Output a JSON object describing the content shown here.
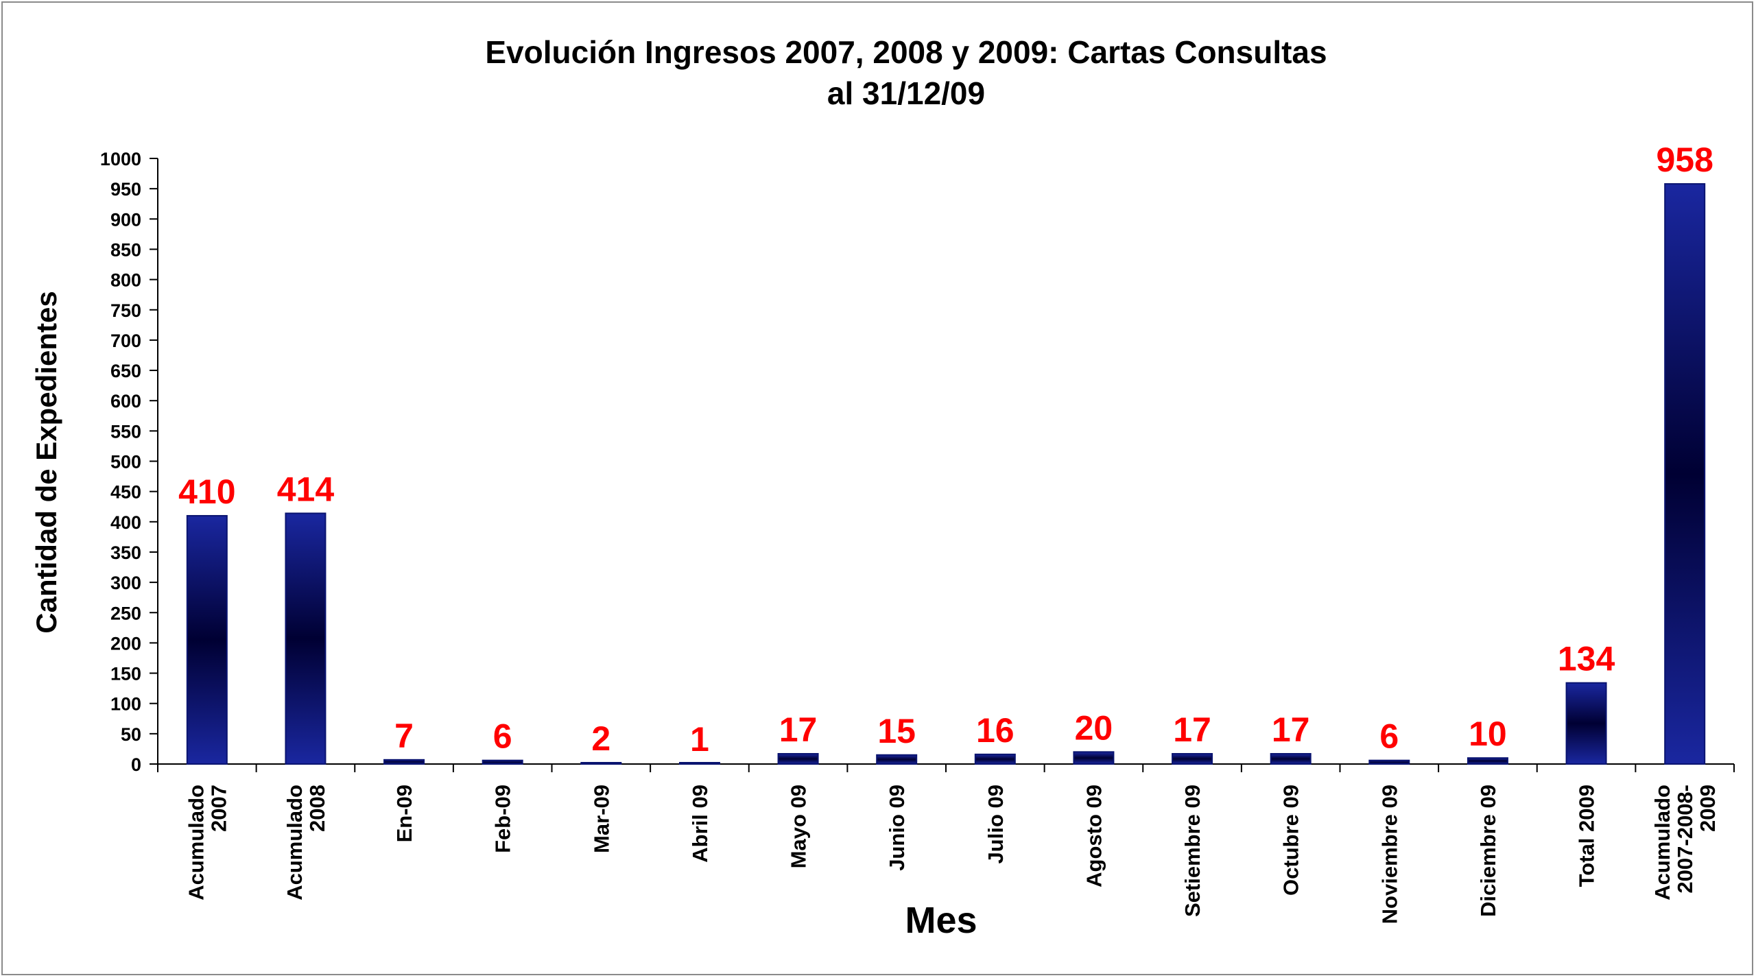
{
  "chart_data": {
    "type": "bar",
    "title": [
      "Evolución Ingresos 2007, 2008 y 2009: Cartas Consultas",
      "al 31/12/09"
    ],
    "xlabel": "Mes",
    "ylabel": "Cantidad de Expedientes",
    "ylim": [
      0,
      1000
    ],
    "ytick_step": 50,
    "grid": false,
    "categories": [
      [
        "Acumulado",
        "2007"
      ],
      [
        "Acumulado",
        "2008"
      ],
      [
        "En-09"
      ],
      [
        "Feb-09"
      ],
      [
        "Mar-09"
      ],
      [
        "Abril 09"
      ],
      [
        "Mayo 09"
      ],
      [
        "Junio 09"
      ],
      [
        "Julio 09"
      ],
      [
        "Agosto 09"
      ],
      [
        "Setiembre 09"
      ],
      [
        "Octubre 09"
      ],
      [
        "Noviembre 09"
      ],
      [
        "Diciembre 09"
      ],
      [
        "Total 2009"
      ],
      [
        "Acumulado",
        "2007-2008-",
        "2009"
      ]
    ],
    "values": [
      410,
      414,
      7,
      6,
      2,
      1,
      17,
      15,
      16,
      20,
      17,
      17,
      6,
      10,
      134,
      958
    ],
    "colors": {
      "bar_edge": "#0a1470",
      "bar_dark": "#000033",
      "bar_light": "#1a27a0",
      "data_label": "#ff0000"
    }
  }
}
